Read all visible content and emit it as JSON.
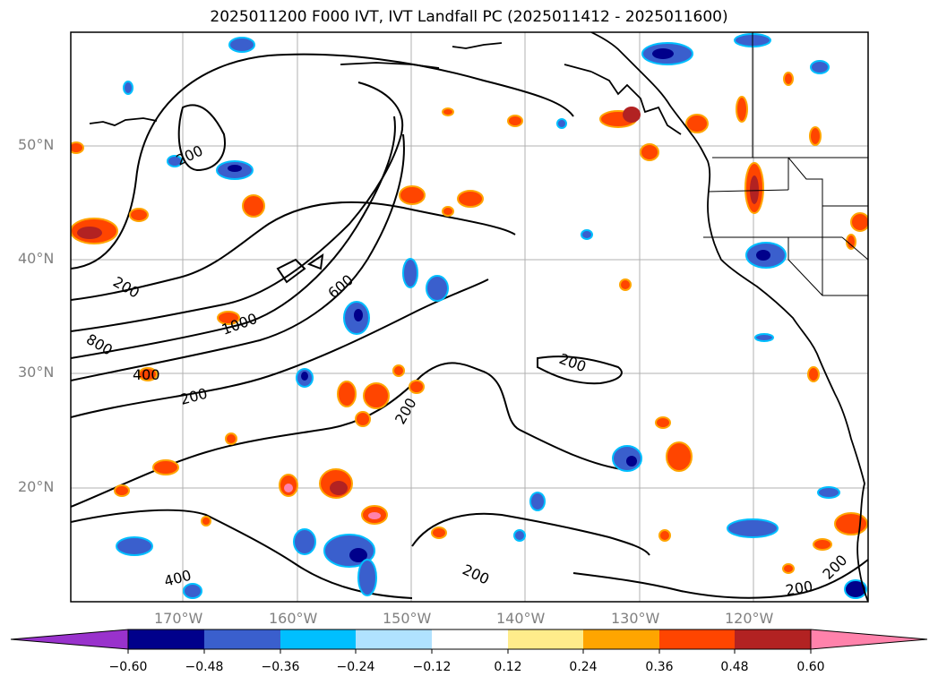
{
  "title": "2025011200 F000 IVT, IVT Landfall PC (2025011412 - 2025011600)",
  "lat_labels": [
    "50°N",
    "40°N",
    "30°N",
    "20°N"
  ],
  "lon_labels": [
    "170°W",
    "160°W",
    "150°W",
    "140°W",
    "130°W",
    "120°W"
  ],
  "contour_labels": [
    "200",
    "200",
    "800",
    "400",
    "200",
    "1000",
    "600",
    "200",
    "200",
    "200",
    "400",
    "200",
    "200"
  ],
  "colorbar": {
    "ticks": [
      "−0.60",
      "−0.48",
      "−0.36",
      "−0.24",
      "−0.12",
      "0.12",
      "0.24",
      "0.36",
      "0.48",
      "0.60"
    ],
    "colors": [
      "#9932cc",
      "#00008b",
      "#3a5fcd",
      "#00bfff",
      "#b0e2ff",
      "#ffffff",
      "#ffec8b",
      "#ffa500",
      "#ff4500",
      "#b22222",
      "#ff82ab"
    ]
  },
  "colors": {
    "neg_strong": "#00008b",
    "neg_mid": "#3a5fcd",
    "neg_light": "#00bfff",
    "neg_pale": "#b0e2ff",
    "pos_pale": "#ffec8b",
    "pos_light": "#ffa500",
    "pos_mid": "#ff4500",
    "pos_strong": "#b22222",
    "pos_max": "#ff82ab"
  }
}
